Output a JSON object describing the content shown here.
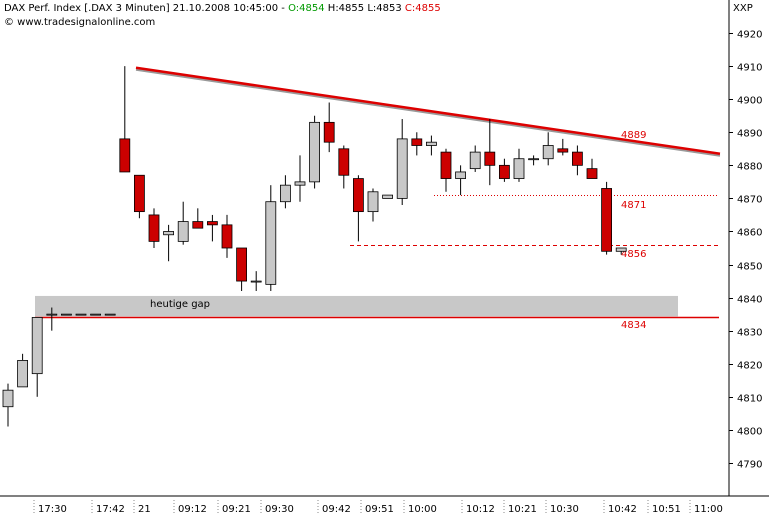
{
  "header": {
    "title_prefix": "DAX Perf. Index [.DAX  3 Minuten] 21.10.2008 10:45:00 - ",
    "open": "O:4854",
    "high": "H:4855",
    "low": "L:4853",
    "close": "C:4855",
    "source": "© www.tradesignalonline.com"
  },
  "symbol": "XXP",
  "colors": {
    "up": "#c8c8c8",
    "down": "#cc0000",
    "trend": "#dd0000",
    "gap_zone": "#c8c8c8"
  },
  "chart_data": {
    "type": "candlestick",
    "ylim": [
      4780,
      4930
    ],
    "y_ticks": [
      4790,
      4800,
      4810,
      4820,
      4830,
      4840,
      4850,
      4860,
      4870,
      4880,
      4890,
      4900,
      4910,
      4920
    ],
    "x_labels": [
      "17:30",
      "17:42",
      "21",
      "09:12",
      "09:21",
      "09:30",
      "09:42",
      "09:51",
      "10:00",
      "10:12",
      "10:21",
      "10:30",
      "10:42",
      "10:51",
      "11:00"
    ],
    "candles": [
      {
        "open": 4807,
        "high": 4814,
        "low": 4801,
        "close": 4812
      },
      {
        "open": 4813,
        "high": 4823,
        "low": 4813,
        "close": 4821
      },
      {
        "open": 4817,
        "high": 4834,
        "low": 4810,
        "close": 4834
      },
      {
        "open": 4835,
        "high": 4837,
        "low": 4830,
        "close": 4835
      },
      {
        "open": 4835,
        "high": 4835,
        "low": 4835,
        "close": 4835
      },
      {
        "open": 4835,
        "high": 4835,
        "low": 4835,
        "close": 4835
      },
      {
        "open": 4835,
        "high": 4835,
        "low": 4835,
        "close": 4835
      },
      {
        "open": 4835,
        "high": 4835,
        "low": 4835,
        "close": 4835
      },
      {
        "open": 4888,
        "high": 4910,
        "low": 4878,
        "close": 4878
      },
      {
        "open": 4877,
        "high": 4877,
        "low": 4864,
        "close": 4866
      },
      {
        "open": 4865,
        "high": 4867,
        "low": 4855,
        "close": 4857
      },
      {
        "open": 4859,
        "high": 4862,
        "low": 4851,
        "close": 4860
      },
      {
        "open": 4857,
        "high": 4869,
        "low": 4856,
        "close": 4863
      },
      {
        "open": 4863,
        "high": 4867,
        "low": 4861,
        "close": 4861
      },
      {
        "open": 4863,
        "high": 4865,
        "low": 4857,
        "close": 4862
      },
      {
        "open": 4862,
        "high": 4865,
        "low": 4852,
        "close": 4855
      },
      {
        "open": 4855,
        "high": 4855,
        "low": 4842,
        "close": 4845
      },
      {
        "open": 4845,
        "high": 4848,
        "low": 4842,
        "close": 4845
      },
      {
        "open": 4844,
        "high": 4874,
        "low": 4842,
        "close": 4869
      },
      {
        "open": 4869,
        "high": 4877,
        "low": 4867,
        "close": 4874
      },
      {
        "open": 4874,
        "high": 4883,
        "low": 4869,
        "close": 4875
      },
      {
        "open": 4875,
        "high": 4895,
        "low": 4873,
        "close": 4893
      },
      {
        "open": 4893,
        "high": 4899,
        "low": 4884,
        "close": 4887
      },
      {
        "open": 4885,
        "high": 4886,
        "low": 4873,
        "close": 4877
      },
      {
        "open": 4876,
        "high": 4877,
        "low": 4857,
        "close": 4866
      },
      {
        "open": 4866,
        "high": 4873,
        "low": 4863,
        "close": 4872
      },
      {
        "open": 4870,
        "high": 4871,
        "low": 4870,
        "close": 4871
      },
      {
        "open": 4870,
        "high": 4894,
        "low": 4868,
        "close": 4888
      },
      {
        "open": 4888,
        "high": 4890,
        "low": 4883,
        "close": 4886
      },
      {
        "open": 4886,
        "high": 4889,
        "low": 4883,
        "close": 4887
      },
      {
        "open": 4884,
        "high": 4885,
        "low": 4872,
        "close": 4876
      },
      {
        "open": 4876,
        "high": 4880,
        "low": 4871,
        "close": 4878
      },
      {
        "open": 4879,
        "high": 4886,
        "low": 4878,
        "close": 4884
      },
      {
        "open": 4884,
        "high": 4894,
        "low": 4874,
        "close": 4880
      },
      {
        "open": 4880,
        "high": 4882,
        "low": 4875,
        "close": 4876
      },
      {
        "open": 4876,
        "high": 4885,
        "low": 4875,
        "close": 4882
      },
      {
        "open": 4882,
        "high": 4883,
        "low": 4880,
        "close": 4882
      },
      {
        "open": 4882,
        "high": 4890,
        "low": 4880,
        "close": 4886
      },
      {
        "open": 4885,
        "high": 4888,
        "low": 4883,
        "close": 4884
      },
      {
        "open": 4884,
        "high": 4886,
        "low": 4877,
        "close": 4880
      },
      {
        "open": 4879,
        "high": 4882,
        "low": 4876,
        "close": 4876
      },
      {
        "open": 4873,
        "high": 4875,
        "low": 4853,
        "close": 4854
      },
      {
        "open": 4854,
        "high": 4855,
        "low": 4853,
        "close": 4855
      }
    ],
    "trendline": {
      "from": 4909.5,
      "to": 4883.5,
      "label": "4889"
    },
    "levels": [
      {
        "value": 4871,
        "style": "dotted",
        "label": "4871"
      },
      {
        "value": 4856,
        "style": "dashed",
        "label": "4856"
      },
      {
        "value": 4834,
        "style": "solid",
        "label": "4834"
      }
    ],
    "gap_zone": {
      "low": 4834,
      "high": 4840.5,
      "label": "heutige gap"
    }
  }
}
